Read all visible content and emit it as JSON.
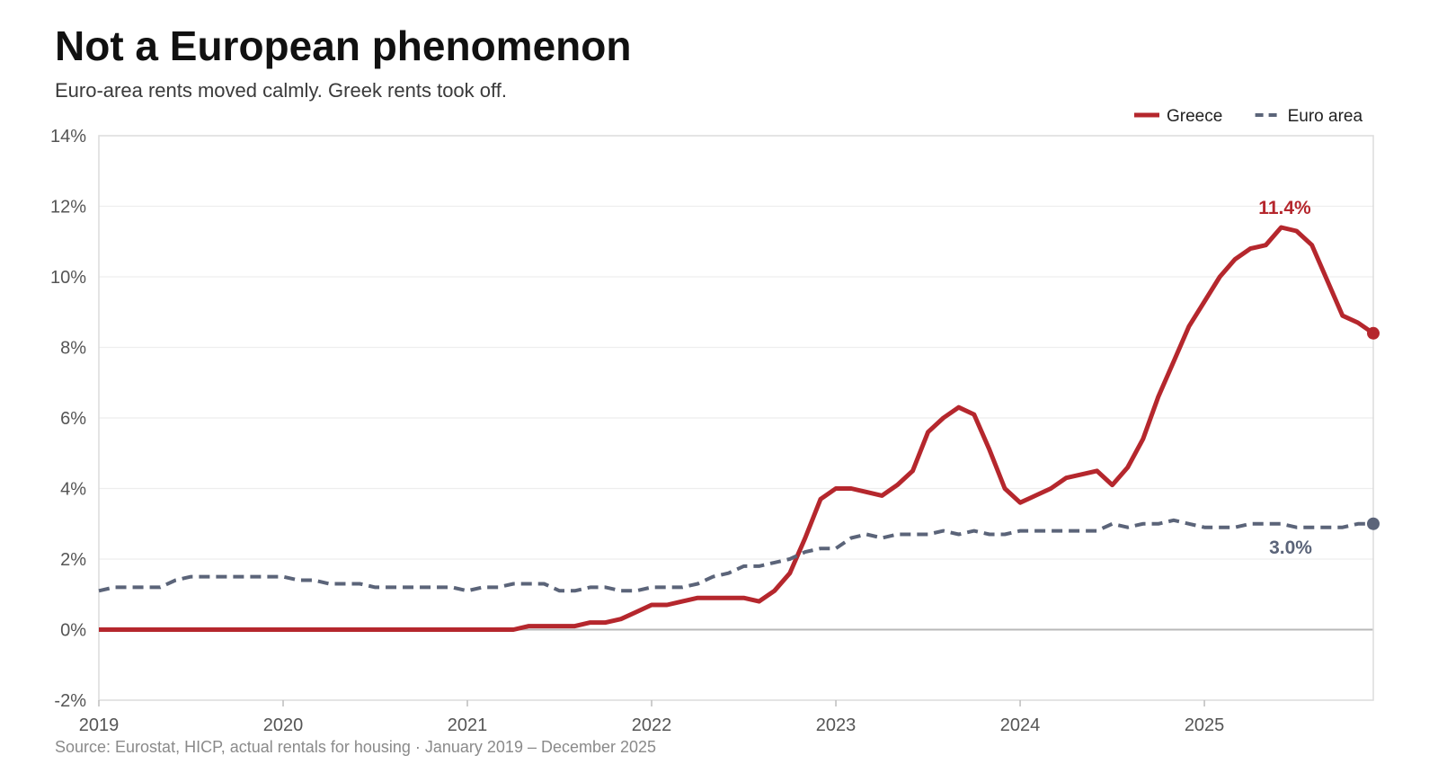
{
  "title": "Not a European phenomenon",
  "subtitle": "Euro-area rents moved calmly. Greek rents took off.",
  "source": "Source: Eurostat, HICP, actual rentals for housing · January 2019 – December 2025",
  "chart_data": {
    "type": "line",
    "x_unit": "month",
    "x": [
      "2019-01",
      "2019-02",
      "2019-03",
      "2019-04",
      "2019-05",
      "2019-06",
      "2019-07",
      "2019-08",
      "2019-09",
      "2019-10",
      "2019-11",
      "2019-12",
      "2020-01",
      "2020-02",
      "2020-03",
      "2020-04",
      "2020-05",
      "2020-06",
      "2020-07",
      "2020-08",
      "2020-09",
      "2020-10",
      "2020-11",
      "2020-12",
      "2021-01",
      "2021-02",
      "2021-03",
      "2021-04",
      "2021-05",
      "2021-06",
      "2021-07",
      "2021-08",
      "2021-09",
      "2021-10",
      "2021-11",
      "2021-12",
      "2022-01",
      "2022-02",
      "2022-03",
      "2022-04",
      "2022-05",
      "2022-06",
      "2022-07",
      "2022-08",
      "2022-09",
      "2022-10",
      "2022-11",
      "2022-12",
      "2023-01",
      "2023-02",
      "2023-03",
      "2023-04",
      "2023-05",
      "2023-06",
      "2023-07",
      "2023-08",
      "2023-09",
      "2023-10",
      "2023-11",
      "2023-12",
      "2024-01",
      "2024-02",
      "2024-03",
      "2024-04",
      "2024-05",
      "2024-06",
      "2024-07",
      "2024-08",
      "2024-09",
      "2024-10",
      "2024-11",
      "2024-12",
      "2025-01",
      "2025-02",
      "2025-03",
      "2025-04",
      "2025-05",
      "2025-06",
      "2025-07",
      "2025-08",
      "2025-09",
      "2025-10",
      "2025-11",
      "2025-12"
    ],
    "series": [
      {
        "name": "Greece",
        "color": "#b5272d",
        "style": "solid",
        "values": [
          0,
          0,
          0,
          0,
          0,
          0,
          0,
          0,
          0,
          0,
          0,
          0,
          0,
          0,
          0,
          0,
          0,
          0,
          0,
          0,
          0,
          0,
          0,
          0,
          0,
          0,
          0,
          0,
          0.1,
          0.1,
          0.1,
          0.1,
          0.2,
          0.2,
          0.3,
          0.5,
          0.7,
          0.7,
          0.8,
          0.9,
          0.9,
          0.9,
          0.9,
          0.8,
          1.1,
          1.6,
          2.6,
          3.7,
          4.0,
          4.0,
          3.9,
          3.8,
          4.1,
          4.5,
          5.6,
          6.0,
          6.3,
          6.1,
          5.1,
          4.0,
          3.6,
          3.8,
          4.0,
          4.3,
          4.4,
          4.5,
          4.1,
          4.6,
          5.4,
          6.6,
          7.6,
          8.6,
          9.3,
          10.0,
          10.5,
          10.8,
          10.9,
          11.4,
          11.3,
          10.9,
          9.9,
          8.9,
          8.7,
          8.4
        ]
      },
      {
        "name": "Euro area",
        "color": "#5b6479",
        "style": "dashed",
        "values": [
          1.1,
          1.2,
          1.2,
          1.2,
          1.2,
          1.4,
          1.5,
          1.5,
          1.5,
          1.5,
          1.5,
          1.5,
          1.5,
          1.4,
          1.4,
          1.3,
          1.3,
          1.3,
          1.2,
          1.2,
          1.2,
          1.2,
          1.2,
          1.2,
          1.1,
          1.2,
          1.2,
          1.3,
          1.3,
          1.3,
          1.1,
          1.1,
          1.2,
          1.2,
          1.1,
          1.1,
          1.2,
          1.2,
          1.2,
          1.3,
          1.5,
          1.6,
          1.8,
          1.8,
          1.9,
          2.0,
          2.2,
          2.3,
          2.3,
          2.6,
          2.7,
          2.6,
          2.7,
          2.7,
          2.7,
          2.8,
          2.7,
          2.8,
          2.7,
          2.7,
          2.8,
          2.8,
          2.8,
          2.8,
          2.8,
          2.8,
          3.0,
          2.9,
          3.0,
          3.0,
          3.1,
          3.0,
          2.9,
          2.9,
          2.9,
          3.0,
          3.0,
          3.0,
          2.9,
          2.9,
          2.9,
          2.9,
          3.0,
          3.0
        ]
      }
    ],
    "y_ticks": [
      "-2%",
      "0%",
      "2%",
      "4%",
      "6%",
      "8%",
      "10%",
      "12%",
      "14%"
    ],
    "x_ticks": [
      "2019",
      "2020",
      "2021",
      "2022",
      "2023",
      "2024",
      "2025"
    ],
    "ylim": [
      -2,
      14
    ],
    "grid": true,
    "legend": "top-right",
    "annotations": [
      {
        "series": "Greece",
        "label": "11.4%",
        "x": "2025-06",
        "y": 11.4
      },
      {
        "series": "Euro area",
        "label": "3.0%",
        "x": "2025-12",
        "y": 3.0
      }
    ]
  }
}
